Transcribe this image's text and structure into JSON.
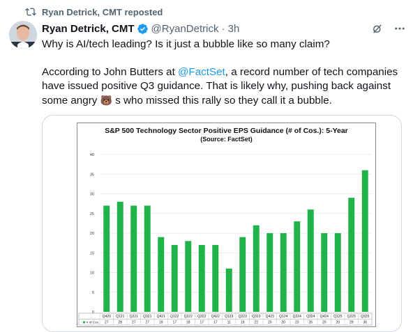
{
  "repost": {
    "label": "Ryan Detrick, CMT reposted"
  },
  "author": {
    "name": "Ryan Detrick, CMT",
    "handle": "@RyanDetrick",
    "time": "· 3h"
  },
  "tweet": {
    "line1": "Why is AI/tech leading? Is it just a bubble like so many claim?",
    "p2_a": "According to John Butters at ",
    "p2_link": "@FactSet",
    "p2_b": ", a record number of tech companies have issued positive Q3 guidance. That is likely why, pushing  back against some angry ",
    "p2_c": " s who missed this rally so they call  it a bubble.",
    "bear_emoji": "🐻"
  },
  "chart_data": {
    "type": "bar",
    "title": "S&P 500 Technology Sector Positive EPS Guidance (# of Cos.): 5-Year",
    "subtitle": "(Source: FactSet)",
    "categories": [
      "Q420",
      "Q121",
      "Q221",
      "Q321",
      "Q421",
      "Q122",
      "Q222",
      "Q322",
      "Q422",
      "Q123",
      "Q223",
      "Q323",
      "Q423",
      "Q124",
      "Q224",
      "Q324",
      "Q424",
      "Q125",
      "Q225",
      "Q325"
    ],
    "values": [
      27,
      28,
      27,
      27,
      19,
      17,
      18,
      17,
      17,
      11,
      19,
      22,
      20,
      20,
      23,
      26,
      20,
      20,
      29,
      36
    ],
    "legend": "# of Cos.",
    "yticks": [
      0,
      5,
      10,
      15,
      20,
      25,
      30,
      35,
      40
    ],
    "ylim": [
      0,
      40
    ],
    "bar_color": "#1fb34a",
    "grid": true
  }
}
